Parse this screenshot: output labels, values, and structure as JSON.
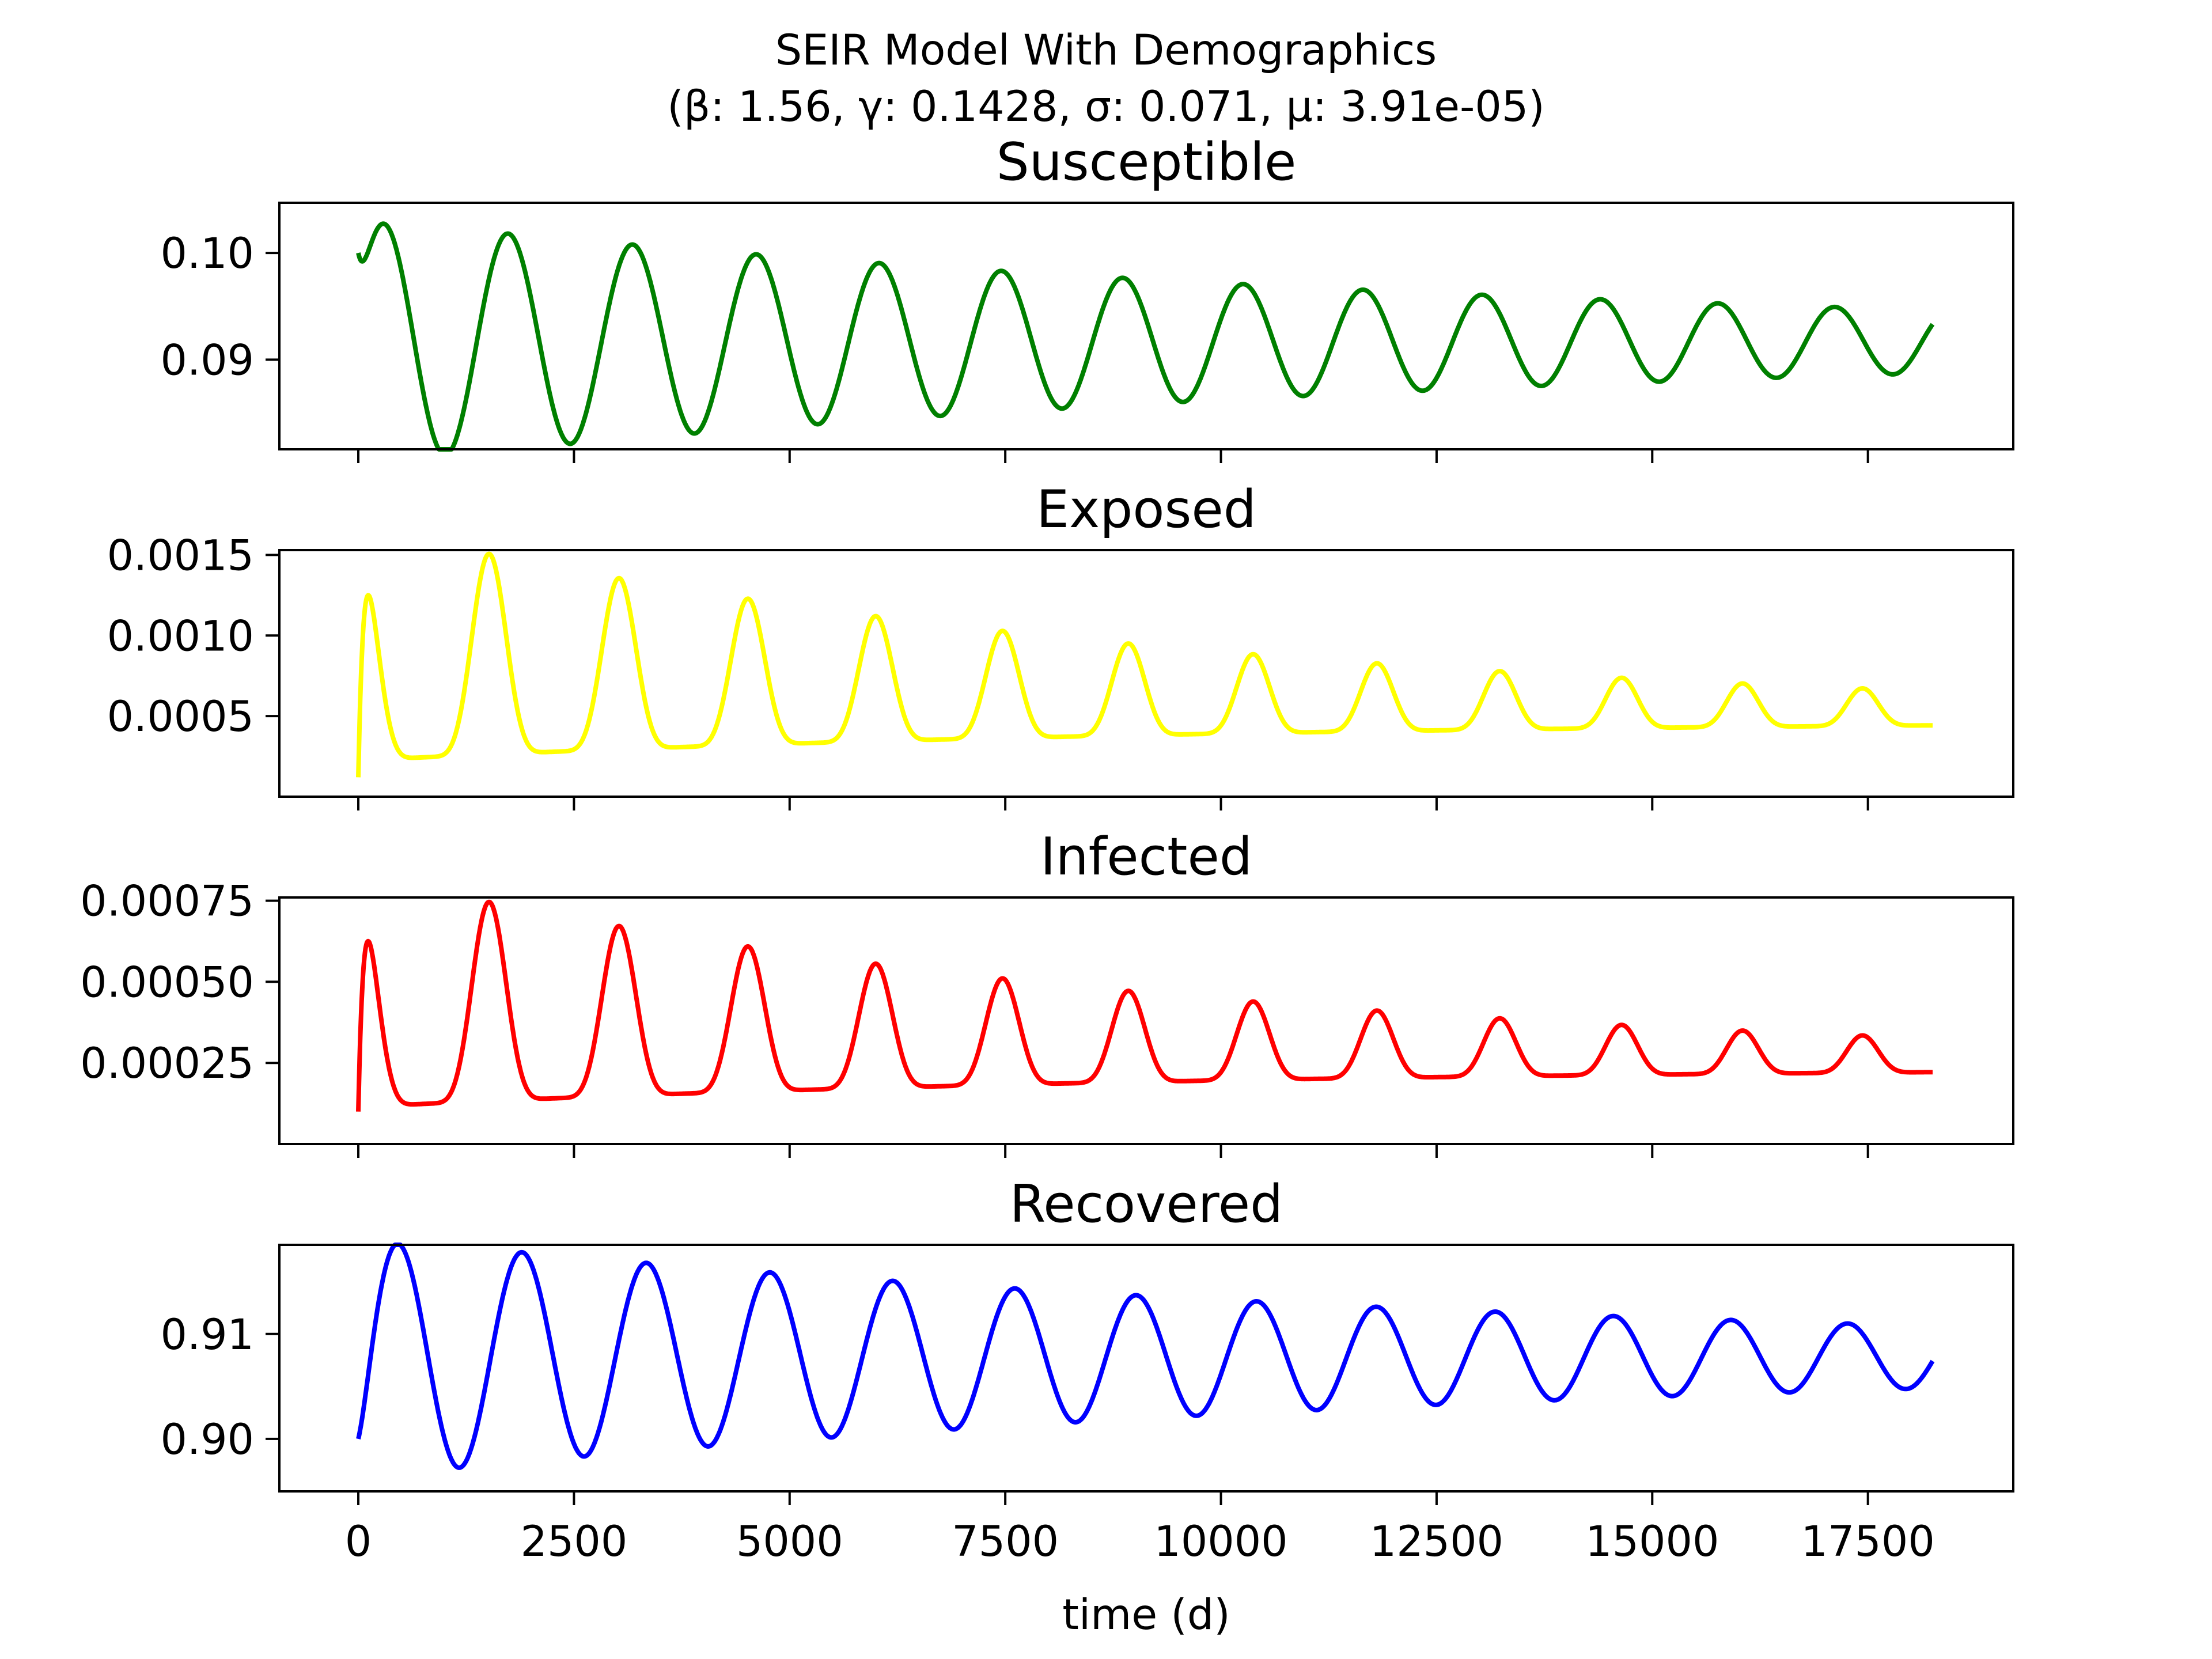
{
  "figure": {
    "title_line1": "SEIR Model With Demographics",
    "title_line2": "(β: 1.56, γ: 0.1428, σ: 0.071, μ: 3.91e-05)"
  },
  "chart_data": [
    {
      "type": "line",
      "title": "Susceptible",
      "xlabel": "",
      "ylabel": "",
      "xlim": [
        -915,
        19185
      ],
      "ylim": [
        0.0816,
        0.1047
      ],
      "xticks": [
        0,
        2500,
        5000,
        7500,
        10000,
        12500,
        15000,
        17500
      ],
      "xtick_labels_visible": false,
      "yticks": [
        0.09,
        0.1
      ],
      "ytick_labels": [
        "0.09",
        "0.10"
      ],
      "grid": false,
      "series": [
        {
          "color": "#008000",
          "sim": {
            "mean": 0.0917,
            "initial": 0.1,
            "amp0": 0.0115,
            "phase": 0.35,
            "decay_time": 13500,
            "period0": 1460,
            "period_end": 1400,
            "settle": 110,
            "t_end": 18250
          }
        }
      ]
    },
    {
      "type": "line",
      "title": "Exposed",
      "xlabel": "",
      "ylabel": "",
      "xlim": [
        -915,
        19185
      ],
      "ylim": [
        0.0,
        0.00153
      ],
      "xticks": [
        0,
        2500,
        5000,
        7500,
        10000,
        12500,
        15000,
        17500
      ],
      "xtick_labels_visible": false,
      "yticks": [
        0.0005,
        0.001,
        0.0015
      ],
      "ytick_labels": [
        "0.0005",
        "0.0010",
        "0.0015"
      ],
      "grid": false,
      "series": [
        {
          "color": "#ffff00",
          "sim": {
            "mean": 0.00048,
            "initial": 0.00012,
            "amp0": 0.00073,
            "phase": 1.57,
            "decay_time": 9500,
            "period0": 1525,
            "period_end": 1450,
            "settle": 60,
            "t_end": 18250,
            "sharpness": 3
          }
        }
      ]
    },
    {
      "type": "line",
      "title": "Infected",
      "xlabel": "",
      "ylabel": "",
      "xlim": [
        -915,
        19185
      ],
      "ylim": [
        0.0,
        0.00076
      ],
      "xticks": [
        0,
        2500,
        5000,
        7500,
        10000,
        12500,
        15000,
        17500
      ],
      "xtick_labels_visible": false,
      "yticks": [
        0.00025,
        0.0005,
        0.00075
      ],
      "ytick_labels": [
        "0.00025",
        "0.00050",
        "0.00075"
      ],
      "grid": false,
      "series": [
        {
          "color": "#ff0000",
          "sim": {
            "mean": 0.00024,
            "initial": 0.0001,
            "amp0": 0.00036,
            "phase": 1.57,
            "decay_time": 9500,
            "period0": 1525,
            "period_end": 1450,
            "settle": 60,
            "t_end": 18250,
            "sharpness": 3,
            "dip": true
          }
        }
      ]
    },
    {
      "type": "line",
      "title": "Recovered",
      "xlabel": "time (d)",
      "ylabel": "",
      "xlim": [
        -915,
        19185
      ],
      "ylim": [
        0.895,
        0.9185
      ],
      "xticks": [
        0,
        2500,
        5000,
        7500,
        10000,
        12500,
        15000,
        17500
      ],
      "xtick_labels": [
        "0",
        "2500",
        "5000",
        "7500",
        "10000",
        "12500",
        "15000",
        "17500"
      ],
      "xtick_labels_visible": true,
      "yticks": [
        0.9,
        0.91
      ],
      "ytick_labels": [
        "0.90",
        "0.91"
      ],
      "grid": false,
      "series": [
        {
          "color": "#0000ff",
          "sim": {
            "mean": 0.9078,
            "initial": 0.9,
            "amp0": 0.0115,
            "phase": -0.35,
            "decay_time": 13500,
            "period0": 1460,
            "period_end": 1400,
            "settle": 110,
            "t_end": 18250,
            "lag": 500
          }
        }
      ]
    }
  ]
}
